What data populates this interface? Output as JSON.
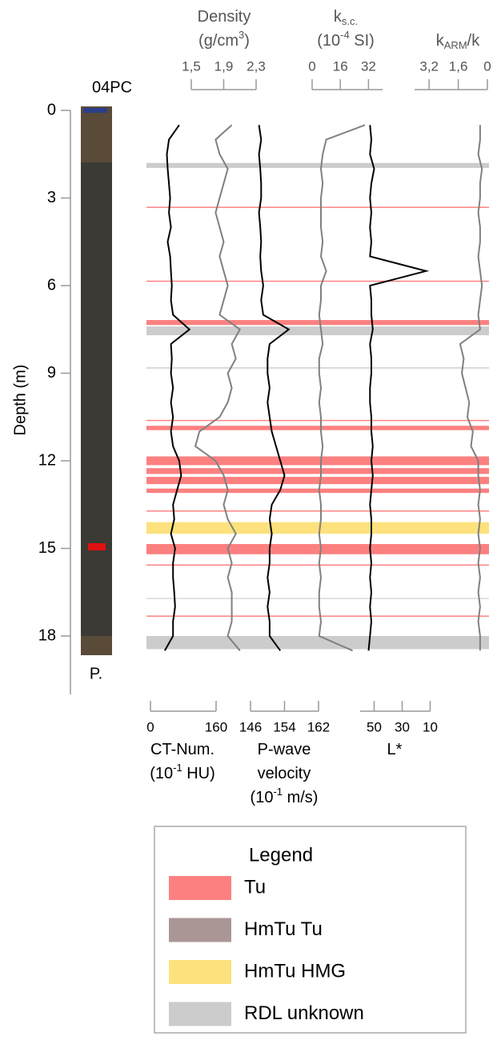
{
  "chart_data": {
    "type": "well-log",
    "core_label": "04PC",
    "core_section_label": "P.",
    "ylabel": "Depth (m)",
    "ylim": [
      0,
      20
    ],
    "yticks": [
      0,
      3,
      6,
      9,
      12,
      15,
      18
    ],
    "depth": [
      0.5,
      1,
      1.5,
      2,
      2.5,
      3,
      3.5,
      4,
      4.5,
      5,
      5.5,
      6,
      6.5,
      7,
      7.5,
      8,
      8.5,
      9,
      9.5,
      10,
      10.5,
      11,
      11.5,
      12,
      12.5,
      13,
      13.5,
      14,
      14.5,
      15,
      15.5,
      16,
      16.5,
      17,
      17.5,
      18,
      18.5
    ],
    "tracks": [
      {
        "title_lines": [
          [
            "CT-Num."
          ],
          [
            "(10",
            {
              "text": "-1",
              "script": "super"
            },
            " HU)"
          ]
        ],
        "axis": "bottom",
        "color": "#000000",
        "xlim": [
          0,
          160
        ],
        "xticks": [
          0,
          160
        ],
        "values": [
          70,
          45,
          40,
          42,
          45,
          48,
          45,
          50,
          42,
          48,
          50,
          52,
          50,
          55,
          95,
          50,
          52,
          50,
          55,
          50,
          55,
          50,
          55,
          70,
          75,
          65,
          55,
          58,
          50,
          60,
          55,
          55,
          58,
          60,
          55,
          55,
          35
        ]
      },
      {
        "title_lines": [
          [
            "Density"
          ],
          [
            "(g/cm",
            {
              "text": "3",
              "script": "super"
            },
            ")"
          ]
        ],
        "axis": "top",
        "color": "#808080",
        "xlim": [
          1.5,
          2.3
        ],
        "xticks": [
          {
            "value": 1.5,
            "label": "1,5"
          },
          {
            "value": 1.9,
            "label": "1,9"
          },
          {
            "value": 2.3,
            "label": "2,3"
          }
        ],
        "values": [
          2.0,
          1.8,
          1.85,
          1.95,
          1.9,
          1.85,
          1.8,
          1.85,
          1.9,
          1.85,
          1.9,
          1.95,
          1.9,
          1.85,
          2.1,
          2.0,
          2.05,
          1.95,
          2.0,
          1.95,
          1.85,
          1.6,
          1.55,
          1.8,
          1.9,
          1.95,
          1.9,
          1.95,
          2.05,
          1.95,
          2.0,
          1.95,
          2.0,
          2.0,
          2.0,
          1.95,
          2.1
        ]
      },
      {
        "title_lines": [
          [
            "P-wave"
          ],
          [
            "velocity"
          ],
          [
            "(10",
            {
              "text": "-1",
              "script": "super"
            },
            " m/s)"
          ]
        ],
        "axis": "bottom",
        "color": "#000000",
        "xlim": [
          146,
          162
        ],
        "xticks": [
          146,
          154,
          162
        ],
        "values": [
          148,
          148.5,
          148,
          148.3,
          148.5,
          148.5,
          148,
          148.3,
          148.5,
          148.3,
          148.5,
          149,
          148.5,
          149,
          155,
          150.5,
          150,
          150,
          150.5,
          150,
          150.5,
          151,
          152,
          153,
          154,
          153,
          151,
          150.5,
          151,
          150.5,
          150.5,
          150,
          150.5,
          150,
          150.5,
          150.5,
          153
        ]
      },
      {
        "title_lines": [
          [
            "k",
            {
              "text": "s.c.",
              "script": "sub"
            }
          ],
          [
            "(10",
            {
              "text": "-4",
              "script": "super"
            },
            " SI)"
          ]
        ],
        "axis": "top",
        "color": "#808080",
        "xlim": [
          0,
          40
        ],
        "xticks": [
          0,
          16,
          32
        ],
        "values": [
          30,
          8,
          6,
          5,
          6,
          5,
          5,
          5,
          6,
          5,
          8,
          5,
          5,
          4,
          5,
          6,
          4,
          4,
          5,
          4,
          5,
          5,
          6,
          5,
          5,
          4,
          5,
          5,
          4,
          5,
          4,
          5,
          4,
          4,
          5,
          4,
          23
        ]
      },
      {
        "title_lines": [
          [
            "L*"
          ]
        ],
        "axis": "bottom",
        "color": "#000000",
        "xlim": [
          60,
          10
        ],
        "xticks": [
          50,
          30,
          10
        ],
        "values": [
          53,
          52,
          53,
          50,
          52,
          53,
          52,
          53,
          52,
          53,
          13,
          53,
          52,
          52,
          51,
          53,
          52,
          52,
          53,
          53,
          52,
          52,
          51,
          52,
          51,
          52,
          53,
          52,
          52,
          53,
          52,
          53,
          52,
          53,
          52,
          53,
          54
        ]
      },
      {
        "title_lines": [
          [
            "k",
            {
              "text": "ARM",
              "script": "sub"
            },
            "/k"
          ]
        ],
        "axis": "top",
        "color": "#808080",
        "xlim": [
          4,
          0
        ],
        "xticks": [
          {
            "value": 3.2,
            "label": "3,2"
          },
          {
            "value": 1.6,
            "label": "1,6"
          },
          0
        ],
        "values": [
          0.4,
          0.4,
          0.5,
          0.3,
          0.4,
          0.4,
          0.5,
          0.4,
          0.4,
          0.5,
          0.4,
          0.3,
          0.4,
          0.5,
          0.4,
          1.5,
          1.3,
          1.4,
          1.2,
          1.0,
          1.1,
          0.8,
          0.9,
          0.5,
          0.5,
          0.4,
          0.5,
          0.4,
          0.5,
          0.4,
          0.5,
          0.4,
          0.5,
          0.4,
          0.5,
          0.4,
          0.4
        ]
      }
    ],
    "legend_title": "Legend",
    "legend": [
      {
        "label": "Tu",
        "color": "#fd8080",
        "intervals": [
          [
            3.3,
            3.34
          ],
          [
            5.83,
            5.87
          ],
          [
            7.18,
            7.35
          ],
          [
            10.6,
            10.64
          ],
          [
            10.8,
            10.95
          ],
          [
            11.85,
            12.15
          ],
          [
            12.25,
            12.45
          ],
          [
            12.55,
            12.8
          ],
          [
            12.95,
            13.1
          ],
          [
            13.7,
            13.74
          ],
          [
            14.85,
            15.2
          ],
          [
            15.55,
            15.59
          ],
          [
            17.3,
            17.34
          ]
        ]
      },
      {
        "label": "HmTu Tu",
        "color": "#ab9696",
        "intervals": []
      },
      {
        "label": "HmTu HMG",
        "color": "#fde17c",
        "intervals": [
          [
            14.1,
            14.5
          ]
        ]
      },
      {
        "label": "RDL unknown",
        "color": "#cccccc",
        "intervals": [
          [
            1.8,
            1.97
          ],
          [
            7.4,
            7.7
          ],
          [
            8.8,
            8.84
          ],
          [
            16.7,
            16.73
          ],
          [
            18.0,
            18.45
          ]
        ]
      }
    ]
  }
}
